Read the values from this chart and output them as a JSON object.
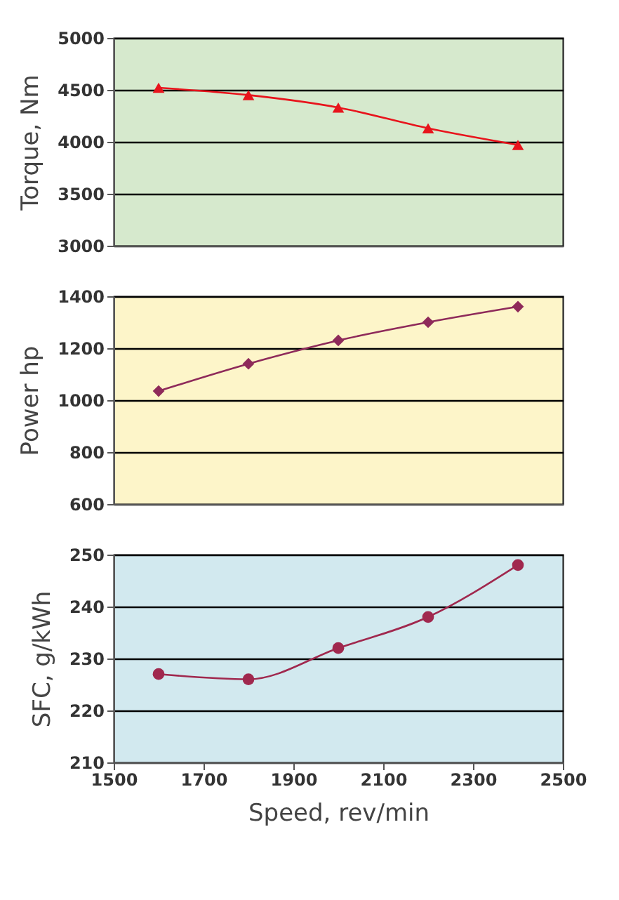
{
  "chart_data": [
    {
      "type": "line",
      "ylabel": "Torque, Nm",
      "x": [
        1600,
        1800,
        2000,
        2200,
        2400
      ],
      "series": [
        {
          "color": "#e8141c",
          "values": [
            4520,
            4450,
            4330,
            4130,
            3970
          ]
        }
      ],
      "xlim": [
        1500,
        2500
      ],
      "xticks": [
        1500,
        1700,
        1900,
        2100,
        2300,
        2500
      ],
      "ylim": [
        3000,
        5000
      ],
      "yticks": [
        3000,
        3500,
        4000,
        4500,
        5000
      ],
      "grid": "y",
      "marker": "triangle",
      "tick_labels": "y"
    },
    {
      "type": "line",
      "ylabel": "Power hp",
      "x": [
        1600,
        1800,
        2000,
        2200,
        2400
      ],
      "series": [
        {
          "color": "#8e2a5a",
          "values": [
            1035,
            1140,
            1230,
            1300,
            1360
          ]
        }
      ],
      "xlim": [
        1500,
        2500
      ],
      "xticks": [
        1500,
        1700,
        1900,
        2100,
        2300,
        2500
      ],
      "ylim": [
        600,
        1400
      ],
      "yticks": [
        600,
        800,
        1000,
        1200,
        1400
      ],
      "grid": "y",
      "marker": "diamond",
      "tick_labels": "y"
    },
    {
      "type": "line",
      "ylabel": "SFC, g/kWh",
      "xlabel": "Speed, rev/min",
      "x": [
        1600,
        1800,
        2000,
        2200,
        2400
      ],
      "series": [
        {
          "color": "#a0284e",
          "values": [
            227,
            226,
            232,
            238,
            248
          ]
        }
      ],
      "xlim": [
        1500,
        2500
      ],
      "xticks": [
        1500,
        1700,
        1900,
        2100,
        2300,
        2500
      ],
      "ylim": [
        210,
        250
      ],
      "yticks": [
        210,
        220,
        230,
        240,
        250
      ],
      "grid": "y",
      "marker": "circle"
    }
  ]
}
